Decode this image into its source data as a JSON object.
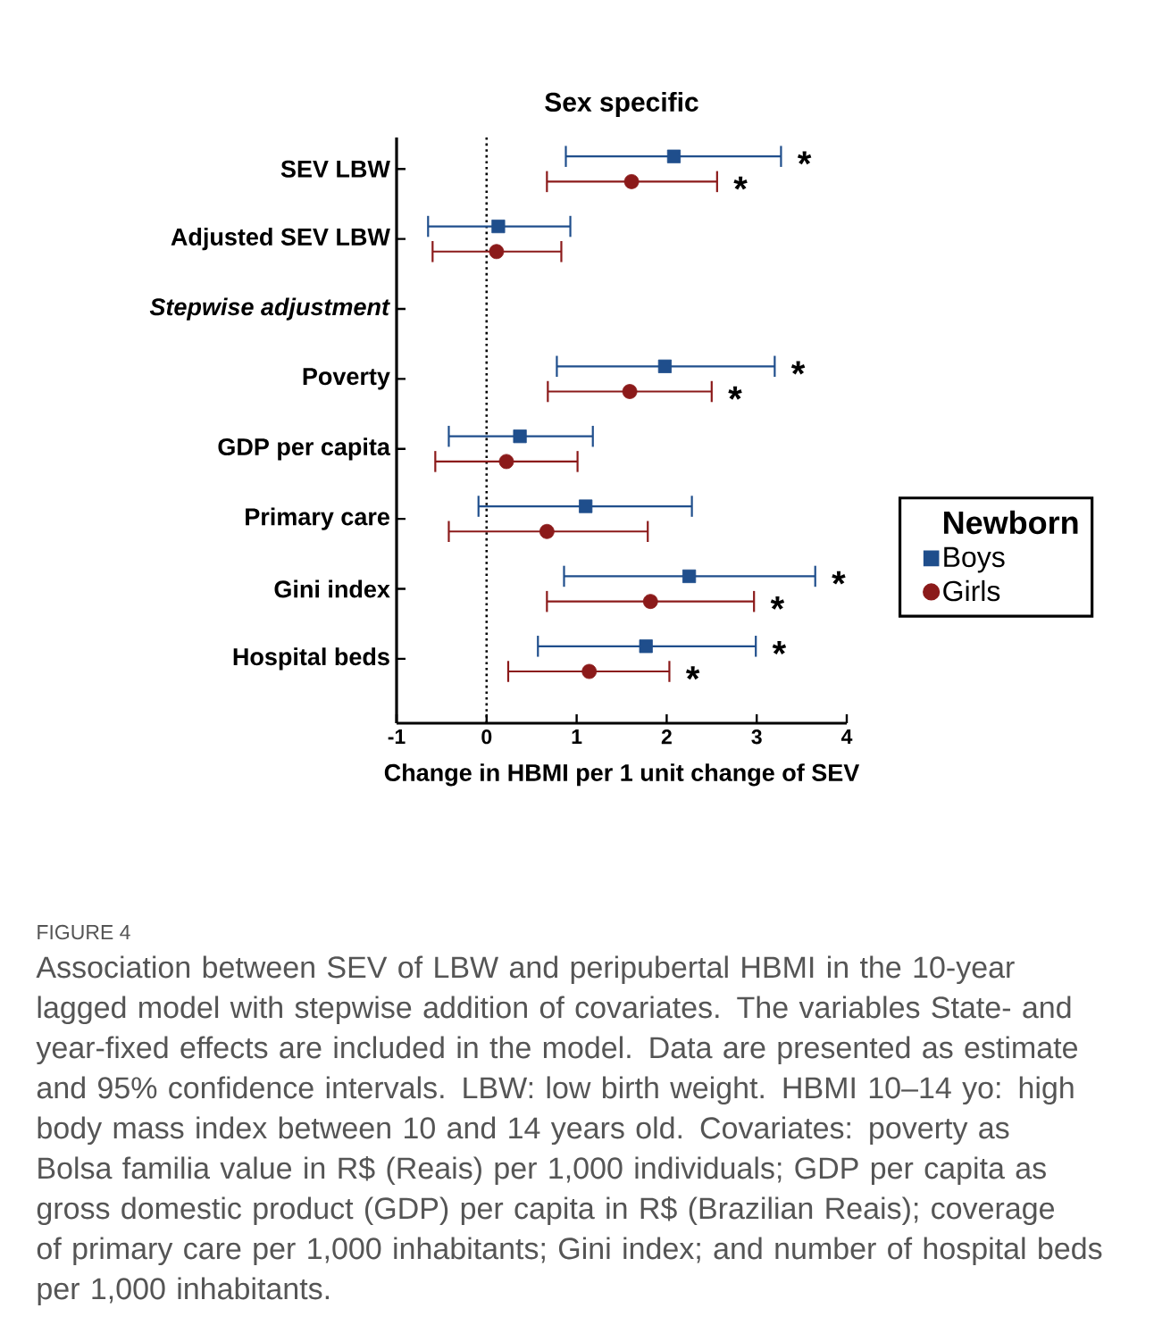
{
  "chart_data": {
    "type": "scatter",
    "orientation": "horizontal",
    "title": "Sex specific",
    "xlabel": "Change in HBMI per 1 unit change of SEV",
    "categories": [
      "SEV LBW",
      "Adjusted SEV LBW",
      "*Stepwise adjustment*",
      "Poverty",
      "GDP per capita",
      "Primary care",
      "Gini index",
      "Hospital beds"
    ],
    "xlim": [
      -1,
      4
    ],
    "xticks": [
      -1,
      0,
      1,
      2,
      3,
      4
    ],
    "legend": "right",
    "legend_title": "Newborn",
    "grid": false,
    "ref_lines": [
      {
        "axis": "x",
        "value": 0,
        "color": "#000000",
        "line_style": "dotted"
      }
    ],
    "series": [
      {
        "name": "Boys",
        "color": "#1f4e8c",
        "marker": "square",
        "values": [
          2.08,
          0.13,
          null,
          1.98,
          0.37,
          1.1,
          2.25,
          1.77
        ],
        "errors": [
          [
            0.88,
            3.27
          ],
          [
            -0.65,
            0.93
          ],
          null,
          [
            0.78,
            3.2
          ],
          [
            -0.42,
            1.18
          ],
          [
            -0.09,
            2.28
          ],
          [
            0.86,
            3.65
          ],
          [
            0.57,
            2.99
          ]
        ]
      },
      {
        "name": "Girls",
        "color": "#8b1a1a",
        "marker": "circle",
        "values": [
          1.61,
          0.11,
          null,
          1.59,
          0.22,
          0.67,
          1.82,
          1.14
        ],
        "errors": [
          [
            0.67,
            2.56
          ],
          [
            -0.6,
            0.83
          ],
          null,
          [
            0.68,
            2.5
          ],
          [
            -0.57,
            1.01
          ],
          [
            -0.42,
            1.79
          ],
          [
            0.67,
            2.97
          ],
          [
            0.24,
            2.03
          ]
        ]
      }
    ],
    "annotations": [
      {
        "text": "*",
        "x": 3.27,
        "y": "SEV LBW"
      },
      {
        "text": "*",
        "x": 2.56,
        "y": "SEV LBW"
      },
      {
        "text": "*",
        "x": 3.2,
        "y": "Poverty"
      },
      {
        "text": "*",
        "x": 2.5,
        "y": "Poverty"
      },
      {
        "text": "*",
        "x": 3.65,
        "y": "Gini index"
      },
      {
        "text": "*",
        "x": 2.97,
        "y": "Gini index"
      },
      {
        "text": "*",
        "x": 2.99,
        "y": "Hospital beds"
      },
      {
        "text": "*",
        "x": 2.03,
        "y": "Hospital beds"
      },
      "FIGURE 4",
      "Association between SEV of LBW and peripubertal HBMI in the 10-year lagged model with stepwise addition of covariates. The variables State- and year-fixed effects are included in the model. Data are presented as estimate and 95% confidence intervals. LBW: low birth weight. HBMI 10–14 yo: high body mass index between 10 and 14 years old. Covariates: poverty as Bolsa familia value in R$ (Reais) per 1,000 individuals; GDP per capita as gross domestic product (GDP) per capita in R$ (Brazilian Reais); coverage of primary care per 1,000 inhabitants; Gini index; and number of hospital beds per 1,000 inhabitants."
    ]
  }
}
